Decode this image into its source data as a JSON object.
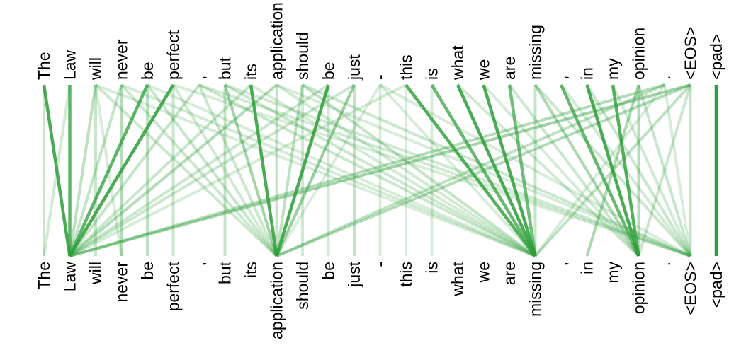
{
  "tokens_top": [
    "The",
    "Law",
    "will",
    "never",
    "be",
    "perfect",
    ",",
    "but",
    "its",
    "application",
    "should",
    "be",
    "just",
    "-",
    "this",
    "is",
    "what",
    "we",
    "are",
    "missing",
    ",",
    "in",
    "my",
    "opinion",
    ".",
    "<EOS>",
    "<pad>"
  ],
  "tokens_bottom": [
    "The",
    "Law",
    "will",
    "never",
    "be",
    "perfect",
    ",",
    "but",
    "its",
    "application",
    "should",
    "be",
    "just",
    "-",
    "this",
    "is",
    "what",
    "we",
    "are",
    "missing",
    ",",
    "in",
    "my",
    "opinion",
    ".",
    "<EOS>",
    "<pad>"
  ],
  "line_color": "#2e9e3a",
  "attention": [
    [
      0,
      0,
      0.2
    ],
    [
      0,
      1,
      0.85
    ],
    [
      1,
      1,
      0.75
    ],
    [
      1,
      0,
      0.15
    ],
    [
      2,
      1,
      0.25
    ],
    [
      2,
      2,
      0.2
    ],
    [
      2,
      9,
      0.18
    ],
    [
      2,
      19,
      0.12
    ],
    [
      2,
      3,
      0.12
    ],
    [
      3,
      1,
      0.22
    ],
    [
      3,
      3,
      0.3
    ],
    [
      3,
      9,
      0.18
    ],
    [
      3,
      19,
      0.14
    ],
    [
      4,
      1,
      0.75
    ],
    [
      4,
      4,
      0.25
    ],
    [
      4,
      9,
      0.2
    ],
    [
      4,
      19,
      0.12
    ],
    [
      5,
      1,
      0.85
    ],
    [
      5,
      5,
      0.2
    ],
    [
      5,
      9,
      0.15
    ],
    [
      5,
      25,
      0.12
    ],
    [
      6,
      1,
      0.22
    ],
    [
      6,
      9,
      0.18
    ],
    [
      6,
      19,
      0.18
    ],
    [
      6,
      25,
      0.15
    ],
    [
      7,
      9,
      0.4
    ],
    [
      7,
      7,
      0.22
    ],
    [
      7,
      19,
      0.18
    ],
    [
      7,
      25,
      0.15
    ],
    [
      8,
      9,
      0.85
    ],
    [
      8,
      1,
      0.2
    ],
    [
      8,
      19,
      0.14
    ],
    [
      9,
      9,
      0.22
    ],
    [
      9,
      1,
      0.3
    ],
    [
      9,
      19,
      0.15
    ],
    [
      9,
      25,
      0.12
    ],
    [
      10,
      9,
      0.25
    ],
    [
      10,
      19,
      0.22
    ],
    [
      10,
      25,
      0.18
    ],
    [
      10,
      10,
      0.15
    ],
    [
      11,
      9,
      0.85
    ],
    [
      11,
      1,
      0.18
    ],
    [
      11,
      11,
      0.15
    ],
    [
      12,
      9,
      0.45
    ],
    [
      12,
      12,
      0.22
    ],
    [
      12,
      1,
      0.18
    ],
    [
      13,
      13,
      0.12
    ],
    [
      13,
      19,
      0.12
    ],
    [
      13,
      25,
      0.12
    ],
    [
      13,
      9,
      0.1
    ],
    [
      14,
      19,
      0.8
    ],
    [
      14,
      1,
      0.14
    ],
    [
      14,
      14,
      0.12
    ],
    [
      15,
      19,
      0.7
    ],
    [
      15,
      15,
      0.12
    ],
    [
      16,
      19,
      0.85
    ],
    [
      16,
      23,
      0.15
    ],
    [
      17,
      19,
      0.85
    ],
    [
      17,
      23,
      0.14
    ],
    [
      18,
      19,
      0.65
    ],
    [
      18,
      23,
      0.18
    ],
    [
      19,
      19,
      0.22
    ],
    [
      19,
      23,
      0.35
    ],
    [
      19,
      25,
      0.18
    ],
    [
      20,
      23,
      0.7
    ],
    [
      20,
      25,
      0.15
    ],
    [
      21,
      23,
      0.85
    ],
    [
      21,
      25,
      0.2
    ],
    [
      22,
      23,
      0.8
    ],
    [
      22,
      25,
      0.15
    ],
    [
      23,
      23,
      0.3
    ],
    [
      23,
      21,
      0.35
    ],
    [
      23,
      25,
      0.2
    ],
    [
      24,
      1,
      0.3
    ],
    [
      24,
      9,
      0.25
    ],
    [
      24,
      25,
      0.12
    ],
    [
      24,
      19,
      0.12
    ],
    [
      25,
      1,
      0.4
    ],
    [
      25,
      9,
      0.3
    ],
    [
      25,
      19,
      0.25
    ],
    [
      25,
      25,
      0.22
    ],
    [
      25,
      23,
      0.18
    ],
    [
      26,
      26,
      1.0
    ]
  ]
}
